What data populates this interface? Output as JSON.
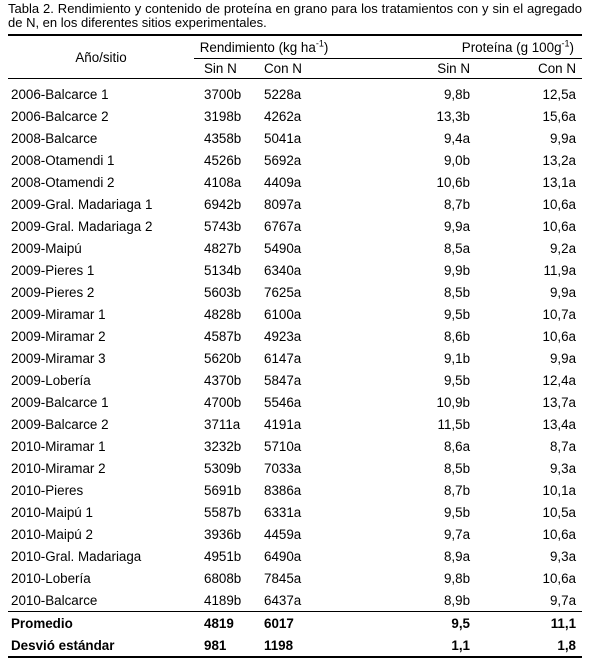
{
  "caption": "Tabla 2. Rendimiento y contenido de proteína en grano para los tratamientos con y sin el agregado de N, en los diferentes sitios experimentales.",
  "header": {
    "site": "Año/sitio",
    "yield_group_base": "Rendimiento (kg ha",
    "yield_group_sup": "-1",
    "yield_group_end": ")",
    "protein_group_base": "Proteína (g 100g",
    "protein_group_sup": "-1",
    "protein_group_end": ")",
    "sin_n": "Sin N",
    "con_n": "Con N"
  },
  "rows": [
    {
      "site": "2006-Balcarce 1",
      "y_sin": "3700b",
      "y_con": "5228a",
      "p_sin": "9,8b",
      "p_con": "12,5a"
    },
    {
      "site": "2006-Balcarce 2",
      "y_sin": "3198b",
      "y_con": "4262a",
      "p_sin": "13,3b",
      "p_con": "15,6a"
    },
    {
      "site": "2008-Balcarce",
      "y_sin": "4358b",
      "y_con": "5041a",
      "p_sin": "9,4a",
      "p_con": "9,9a"
    },
    {
      "site": "2008-Otamendi 1",
      "y_sin": "4526b",
      "y_con": "5692a",
      "p_sin": "9,0b",
      "p_con": "13,2a"
    },
    {
      "site": "2008-Otamendi 2",
      "y_sin": "4108a",
      "y_con": "4409a",
      "p_sin": "10,6b",
      "p_con": "13,1a"
    },
    {
      "site": "2009-Gral. Madariaga 1",
      "y_sin": "6942b",
      "y_con": "8097a",
      "p_sin": "8,7b",
      "p_con": "10,6a"
    },
    {
      "site": "2009-Gral. Madariaga 2",
      "y_sin": "5743b",
      "y_con": "6767a",
      "p_sin": "9,9a",
      "p_con": "10,6a"
    },
    {
      "site": "2009-Maipú",
      "y_sin": "4827b",
      "y_con": "5490a",
      "p_sin": "8,5a",
      "p_con": "9,2a"
    },
    {
      "site": "2009-Pieres 1",
      "y_sin": "5134b",
      "y_con": "6340a",
      "p_sin": "9,9b",
      "p_con": "11,9a"
    },
    {
      "site": "2009-Pieres 2",
      "y_sin": "5603b",
      "y_con": "7625a",
      "p_sin": "8,5b",
      "p_con": "9,9a"
    },
    {
      "site": "2009-Miramar 1",
      "y_sin": "4828b",
      "y_con": "6100a",
      "p_sin": "9,5b",
      "p_con": "10,7a"
    },
    {
      "site": "2009-Miramar 2",
      "y_sin": "4587b",
      "y_con": "4923a",
      "p_sin": "8,6b",
      "p_con": "10,6a"
    },
    {
      "site": "2009-Miramar 3",
      "y_sin": "5620b",
      "y_con": "6147a",
      "p_sin": "9,1b",
      "p_con": "9,9a"
    },
    {
      "site": "2009-Lobería",
      "y_sin": "4370b",
      "y_con": "5847a",
      "p_sin": "9,5b",
      "p_con": "12,4a"
    },
    {
      "site": "2009-Balcarce 1",
      "y_sin": "4700b",
      "y_con": "5546a",
      "p_sin": "10,9b",
      "p_con": "13,7a"
    },
    {
      "site": "2009-Balcarce 2",
      "y_sin": "3711a",
      "y_con": "4191a",
      "p_sin": "11,5b",
      "p_con": "13,4a"
    },
    {
      "site": "2010-Miramar 1",
      "y_sin": "3232b",
      "y_con": "5710a",
      "p_sin": "8,6a",
      "p_con": "8,7a"
    },
    {
      "site": "2010-Miramar 2",
      "y_sin": "5309b",
      "y_con": "7033a",
      "p_sin": "8,5b",
      "p_con": "9,3a"
    },
    {
      "site": "2010-Pieres",
      "y_sin": "5691b",
      "y_con": "8386a",
      "p_sin": "8,7b",
      "p_con": "10,1a"
    },
    {
      "site": "2010-Maipú 1",
      "y_sin": "5587b",
      "y_con": "6331a",
      "p_sin": "9,5b",
      "p_con": "10,5a"
    },
    {
      "site": "2010-Maipú 2",
      "y_sin": "3936b",
      "y_con": "4459a",
      "p_sin": "9,7a",
      "p_con": "10,6a"
    },
    {
      "site": "2010-Gral. Madariaga",
      "y_sin": "4951b",
      "y_con": "6490a",
      "p_sin": "8,9a",
      "p_con": "9,3a"
    },
    {
      "site": "2010-Lobería",
      "y_sin": "6808b",
      "y_con": "7845a",
      "p_sin": "9,8b",
      "p_con": "10,6a"
    },
    {
      "site": "2010-Balcarce",
      "y_sin": "4189b",
      "y_con": "6437a",
      "p_sin": "8,9b",
      "p_con": "9,7a"
    }
  ],
  "summary": [
    {
      "label": "Promedio",
      "y_sin": "4819",
      "y_con": "6017",
      "p_sin": "9,5",
      "p_con": "11,1"
    },
    {
      "label": "Desvió estándar",
      "y_sin": "981",
      "y_con": "1198",
      "p_sin": "1,1",
      "p_con": "1,8"
    }
  ]
}
